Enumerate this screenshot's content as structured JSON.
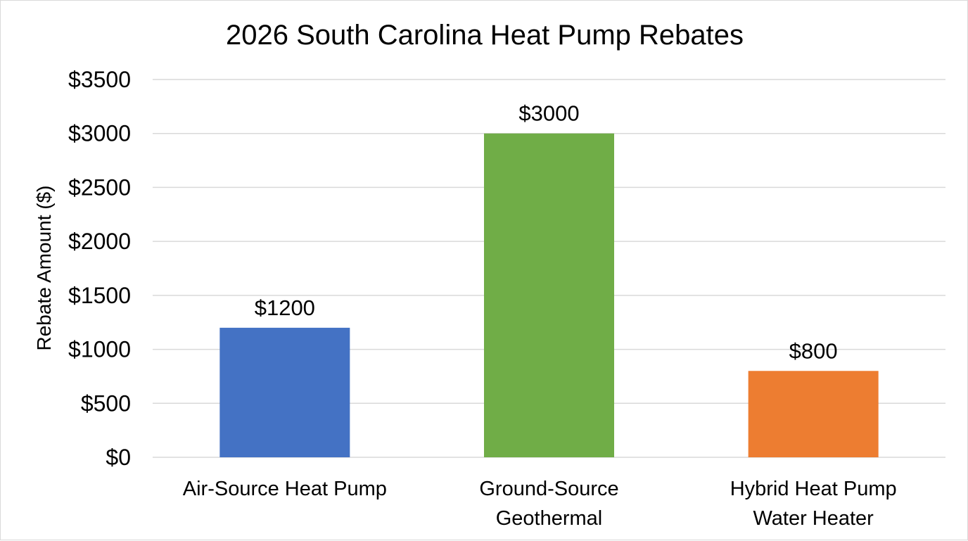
{
  "chart_data": {
    "type": "bar",
    "title": "2026 South Carolina Heat Pump Rebates",
    "xlabel": "",
    "ylabel": "Rebate Amount ($)",
    "ylim": [
      0,
      3500
    ],
    "y_ticks": [
      "$0",
      "$500",
      "$1000",
      "$1500",
      "$2000",
      "$2500",
      "$3000",
      "$3500"
    ],
    "y_tick_values": [
      0,
      500,
      1000,
      1500,
      2000,
      2500,
      3000,
      3500
    ],
    "categories": [
      [
        "Air-Source Heat Pump"
      ],
      [
        "Ground-Source",
        "Geothermal"
      ],
      [
        "Hybrid Heat Pump",
        "Water Heater"
      ]
    ],
    "values": [
      1200,
      3000,
      800
    ],
    "data_labels": [
      "$1200",
      "$3000",
      "$800"
    ],
    "colors": [
      "#4472c4",
      "#70ad47",
      "#ed7d31"
    ],
    "grid": true,
    "legend": "none"
  }
}
